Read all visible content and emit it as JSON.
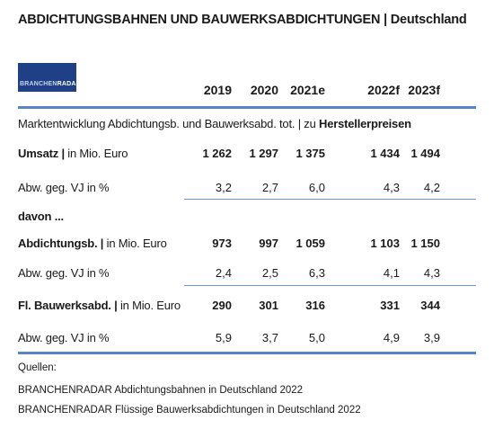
{
  "title": {
    "main": "ABDICHTUNGSBAHNEN UND BAUWERKSABDICHTUNGEN",
    "region": "| Deutschland"
  },
  "logo": {
    "part1": "BRANCHEN",
    "part2": "RADAR"
  },
  "years": [
    "2019",
    "2020",
    "2021e",
    "2022f",
    "2023f"
  ],
  "section_title": {
    "text": "Marktentwicklung Abdichtungsb. und Bauwerksabd. tot. | zu ",
    "bold": "Herstellerpreisen"
  },
  "davon": "davon ...",
  "rows": [
    {
      "label_bold": "Umsatz |",
      "label_rest": " in Mio. Euro",
      "values": [
        "1 262",
        "1 297",
        "1 375",
        "1 434",
        "1 494"
      ]
    },
    {
      "label_bold": "",
      "label_rest": "Abw. geg. VJ in %",
      "values": [
        "3,2",
        "2,7",
        "6,0",
        "4,3",
        "4,2"
      ]
    },
    {
      "label_bold": "Abdichtungsb. |",
      "label_rest": " in Mio. Euro",
      "values": [
        "973",
        "997",
        "1 059",
        "1 103",
        "1 150"
      ]
    },
    {
      "label_bold": "",
      "label_rest": "Abw. geg. VJ in %",
      "values": [
        "2,4",
        "2,5",
        "6,3",
        "4,1",
        "4,3"
      ]
    },
    {
      "label_bold": "Fl. Bauwerksabd. |",
      "label_rest": " in Mio. Euro",
      "values": [
        "290",
        "301",
        "316",
        "331",
        "344"
      ]
    },
    {
      "label_bold": "",
      "label_rest": "Abw. geg. VJ in %",
      "values": [
        "5,9",
        "3,7",
        "5,0",
        "4,9",
        "3,9"
      ]
    }
  ],
  "sources": {
    "heading": "Quellen:",
    "items": [
      "BRANCHENRADAR Abdichtungsbahnen in Deutschland 2022",
      "BRANCHENRADAR Flüssige Bauwerksabdichtungen in Deutschland 2022"
    ]
  },
  "colors": {
    "accent_rule": "#5a84c8",
    "logo_bg": "#1f3f86"
  }
}
